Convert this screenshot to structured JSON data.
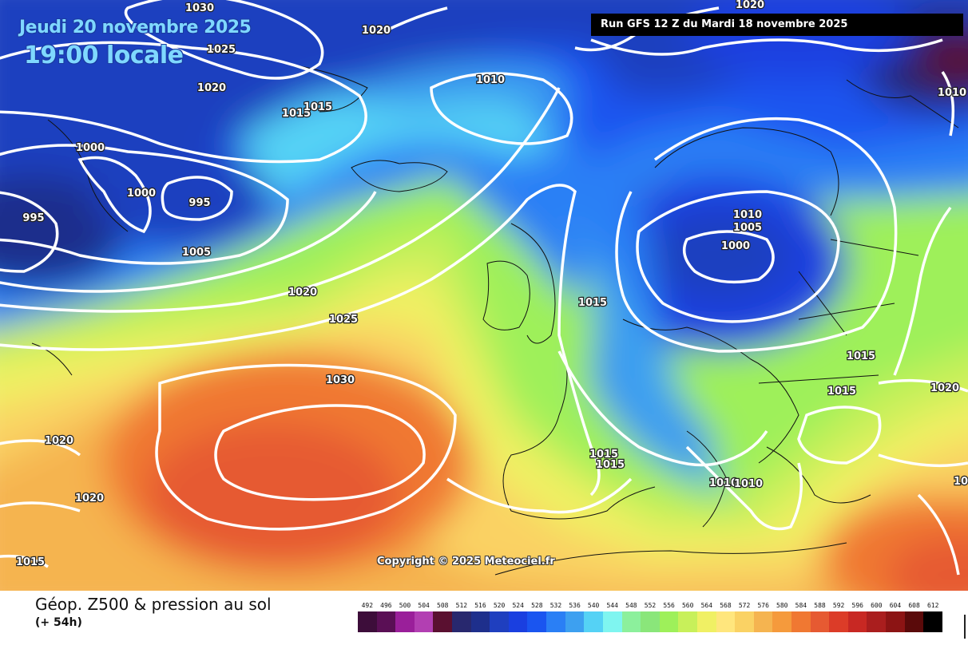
{
  "header": {
    "date": "Jeudi 20 novembre 2025",
    "time": "19:00 locale",
    "run": "Run GFS 12 Z du Mardi 18 novembre 2025"
  },
  "copyright": "Copyright © 2025 Meteociel.fr",
  "caption": {
    "title": "Géop. Z500 & pression au sol",
    "subtitle": "(+ 54h)"
  },
  "isobar_labels": [
    "1030",
    "1020",
    "1025",
    "1020",
    "1010",
    "1015",
    "1015",
    "1000",
    "1000",
    "995",
    "995",
    "1005",
    "1010",
    "1005",
    "1000",
    "1020",
    "1025",
    "1015",
    "1030",
    "1015",
    "1015",
    "1020",
    "1015",
    "1015",
    "1010",
    "1010",
    "1020",
    "1020",
    "1015",
    "1020",
    "1010",
    "10"
  ],
  "legend": {
    "values": [
      492,
      496,
      500,
      504,
      508,
      512,
      516,
      520,
      524,
      528,
      532,
      536,
      540,
      544,
      548,
      552,
      556,
      560,
      564,
      568,
      572,
      576,
      580,
      584,
      588,
      592,
      596,
      600,
      604,
      608,
      612
    ],
    "colors": [
      "#3d0d3a",
      "#5a0f55",
      "#9a1f9a",
      "#b23fb2",
      "#5a1030",
      "#28286e",
      "#1e2f8c",
      "#1f3fbf",
      "#1a3fe0",
      "#1a55f0",
      "#2a7ff5",
      "#3da0f0",
      "#55d2f5",
      "#7ff5f0",
      "#8cf09c",
      "#8ae67a",
      "#9ef05a",
      "#c8f05a",
      "#f0f064",
      "#ffe67d",
      "#fad264",
      "#f5b450",
      "#f59a3c",
      "#f07832",
      "#e65a32",
      "#dc3c28",
      "#c82823",
      "#aa1e1e",
      "#8c1414",
      "#5a0a0a",
      "#000000"
    ]
  }
}
